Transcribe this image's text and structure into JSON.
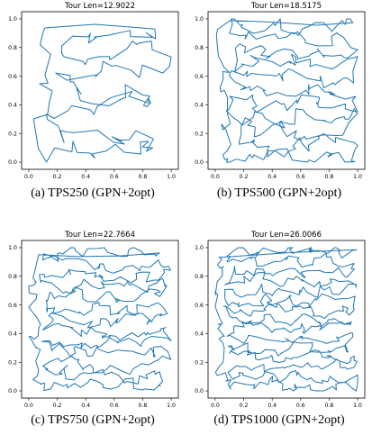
{
  "figure": {
    "panels": [
      {
        "caption": "(a)  TPS250 (GPN+2opt)",
        "chart_data": {
          "type": "line",
          "title": "Tour Len=12.9022",
          "xlabel": "",
          "ylabel": "",
          "xlim": [
            -0.05,
            1.05
          ],
          "ylim": [
            -0.05,
            1.05
          ],
          "xticks": [
            "0.0",
            "0.2",
            "0.4",
            "0.6",
            "0.8",
            "1.0"
          ],
          "yticks": [
            "0.0",
            "0.2",
            "0.4",
            "0.6",
            "0.8",
            "1.0"
          ],
          "color": "#1f77b4",
          "num_cities": 250,
          "tour_length": 12.9022
        }
      },
      {
        "caption": "(b)  TPS500 (GPN+2opt)",
        "chart_data": {
          "type": "line",
          "title": "Tour Len=18.5175",
          "xlabel": "",
          "ylabel": "",
          "xlim": [
            -0.05,
            1.05
          ],
          "ylim": [
            -0.05,
            1.05
          ],
          "xticks": [
            "0.0",
            "0.2",
            "0.4",
            "0.6",
            "0.8",
            "1.0"
          ],
          "yticks": [
            "0.0",
            "0.2",
            "0.4",
            "0.6",
            "0.8",
            "1.0"
          ],
          "color": "#1f77b4",
          "num_cities": 500,
          "tour_length": 18.5175
        }
      },
      {
        "caption": "(c)  TPS750 (GPN+2opt)",
        "chart_data": {
          "type": "line",
          "title": "Tour Len=22.7664",
          "xlabel": "",
          "ylabel": "",
          "xlim": [
            -0.05,
            1.05
          ],
          "ylim": [
            -0.05,
            1.05
          ],
          "xticks": [
            "0.0",
            "0.2",
            "0.4",
            "0.6",
            "0.8",
            "1.0"
          ],
          "yticks": [
            "0.0",
            "0.2",
            "0.4",
            "0.6",
            "0.8",
            "1.0"
          ],
          "color": "#1f77b4",
          "num_cities": 750,
          "tour_length": 22.7664
        }
      },
      {
        "caption": "(d)  TPS1000 (GPN+2opt)",
        "chart_data": {
          "type": "line",
          "title": "Tour Len=26.0066",
          "xlabel": "",
          "ylabel": "",
          "xlim": [
            -0.05,
            1.05
          ],
          "ylim": [
            -0.05,
            1.05
          ],
          "xticks": [
            "0.0",
            "0.2",
            "0.4",
            "0.6",
            "0.8",
            "1.0"
          ],
          "yticks": [
            "0.0",
            "0.2",
            "0.4",
            "0.6",
            "0.8",
            "1.0"
          ],
          "color": "#1f77b4",
          "num_cities": 1000,
          "tour_length": 26.0066
        }
      }
    ]
  }
}
